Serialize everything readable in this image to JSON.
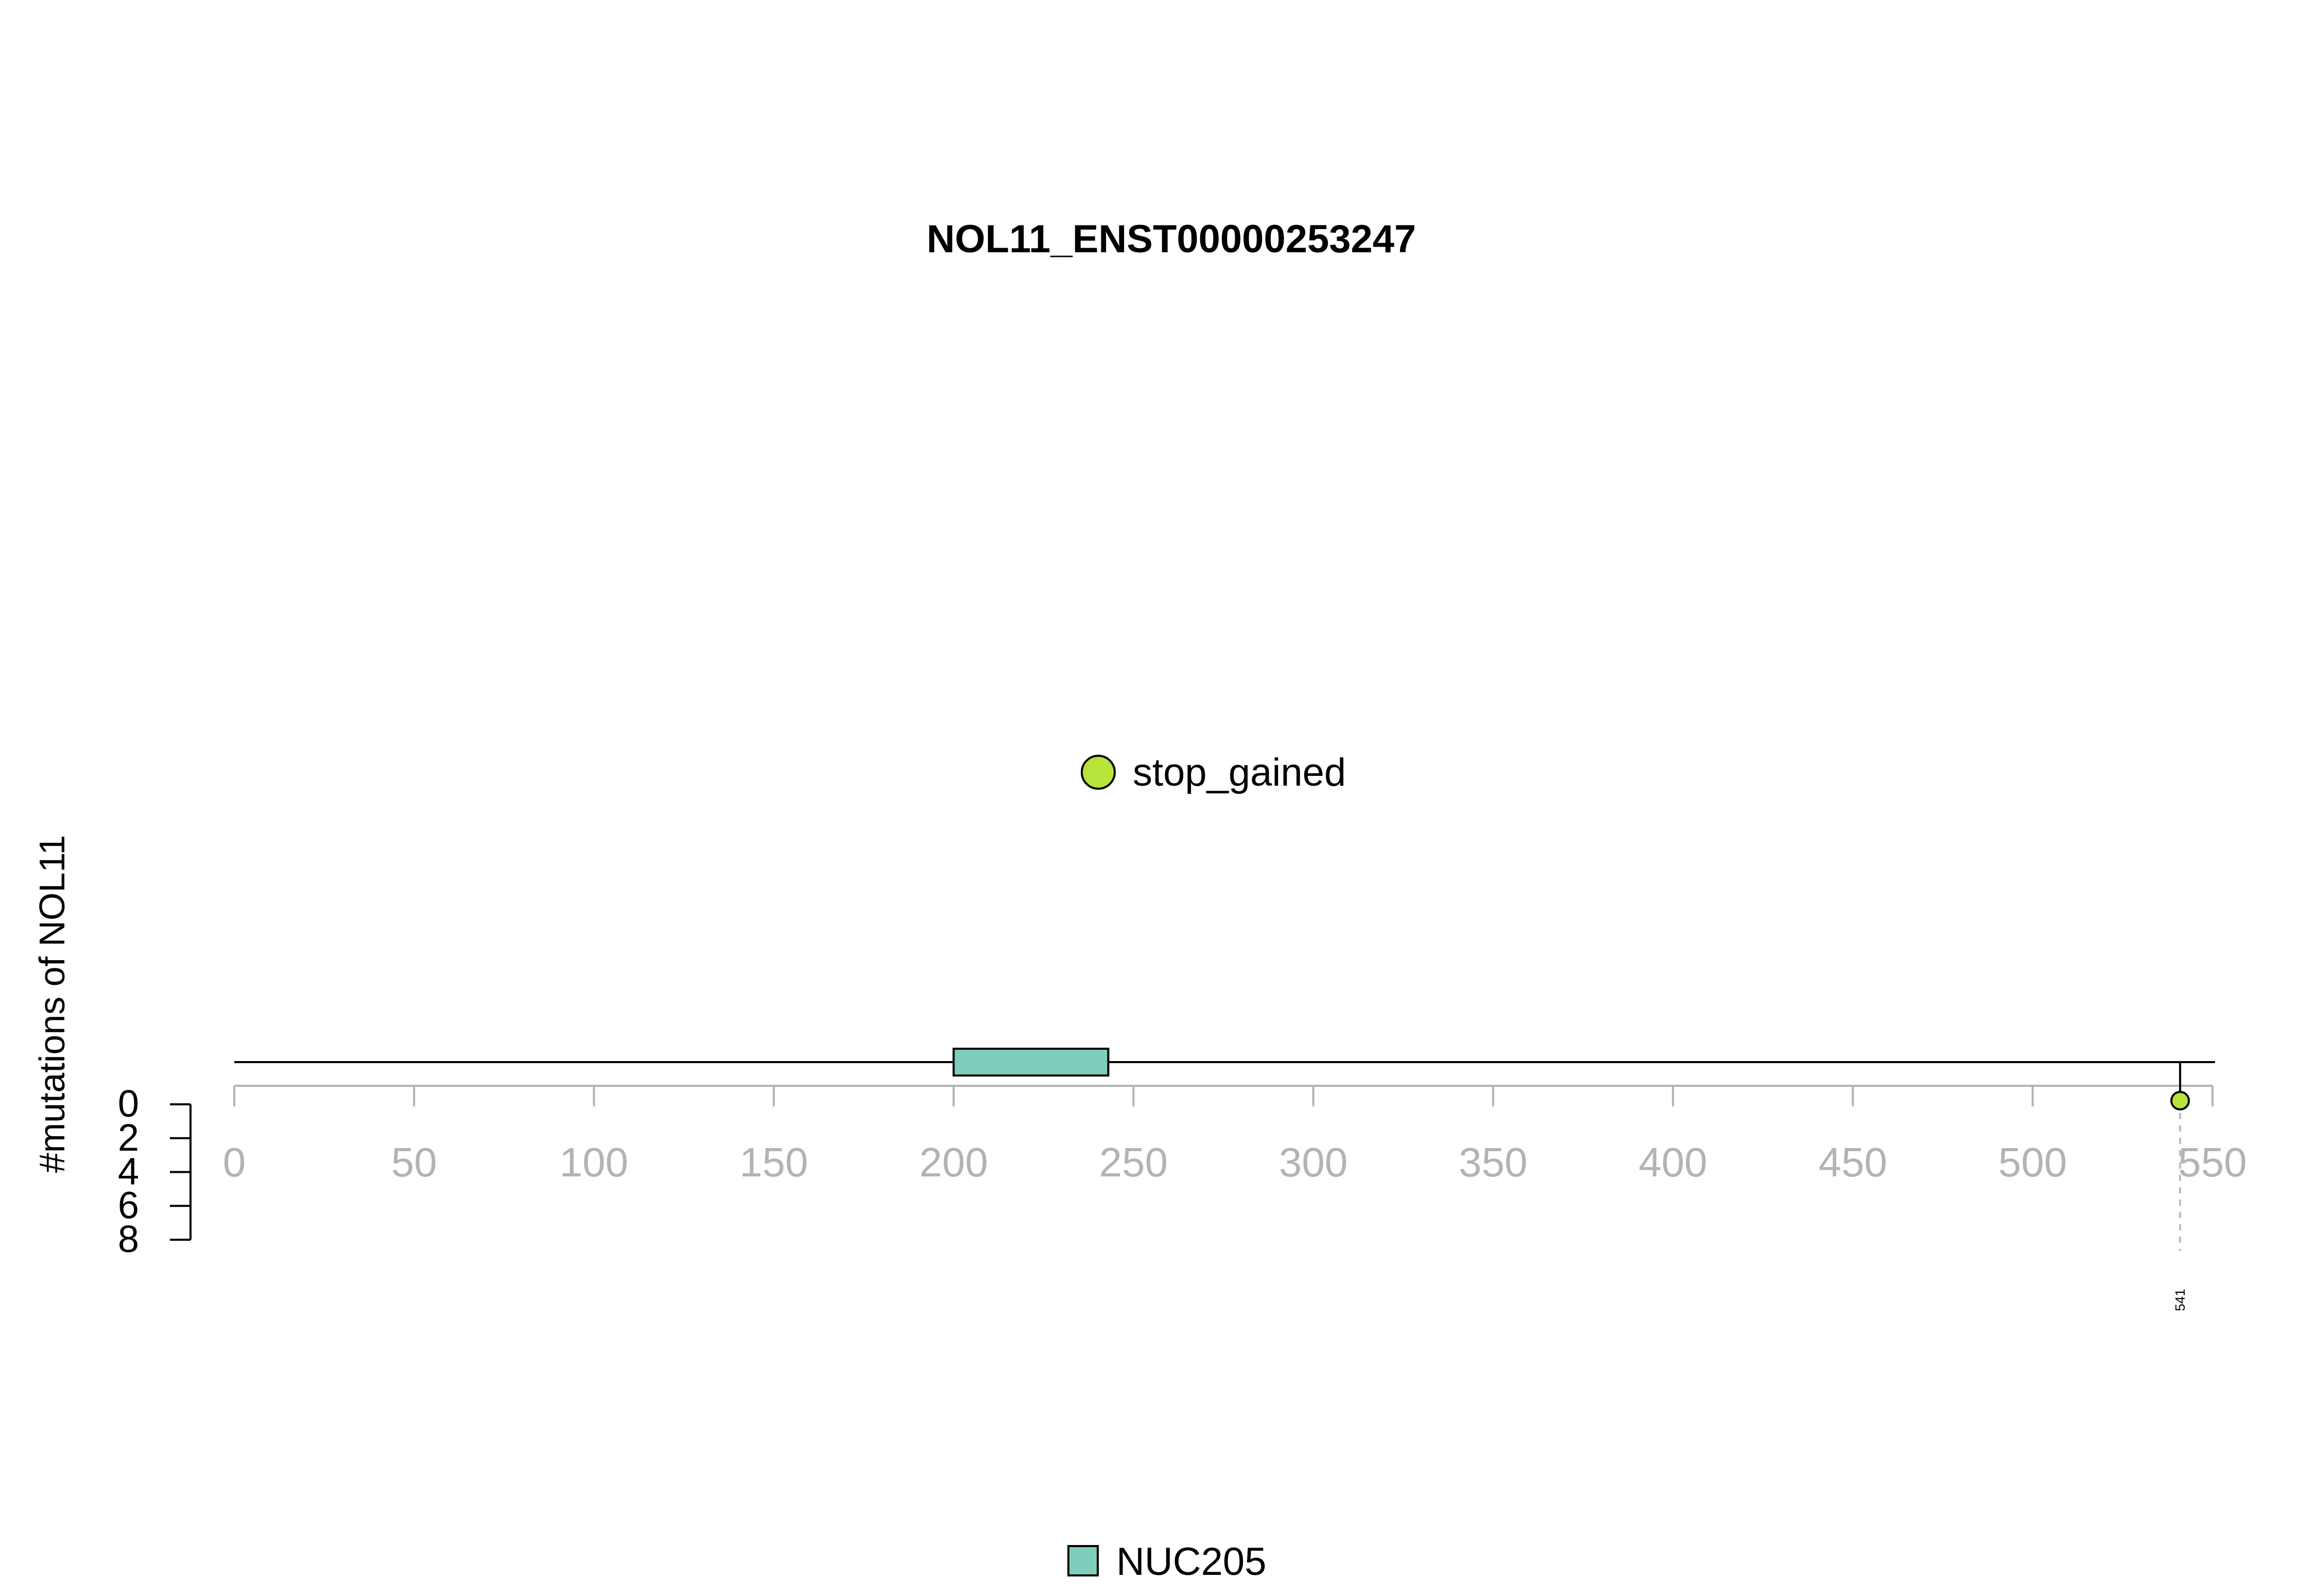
{
  "chart_data": {
    "type": "lollipop",
    "title": "NOL11_ENST00000253247",
    "xlabel": "",
    "ylabel": "#mutations of NOL11",
    "xlim": [
      0,
      550
    ],
    "x_ticks": [
      0,
      50,
      100,
      150,
      200,
      250,
      300,
      350,
      400,
      450,
      500,
      550
    ],
    "y_ticks": [
      0,
      2,
      4,
      6,
      8
    ],
    "ylim": [
      0,
      8
    ],
    "protein_length": 550,
    "domains": [
      {
        "name": "NUC205",
        "start": 200,
        "end": 243,
        "color": "#7FCDBB"
      }
    ],
    "mutations": [
      {
        "position": 541,
        "count": 1,
        "type": "stop_gained",
        "label": "541",
        "color": "#B8E33B"
      }
    ],
    "legend_mutation_types": [
      {
        "name": "stop_gained",
        "color": "#B8E33B"
      }
    ],
    "legend_domains": [
      {
        "name": "NUC205",
        "color": "#7FCDBB"
      }
    ]
  }
}
